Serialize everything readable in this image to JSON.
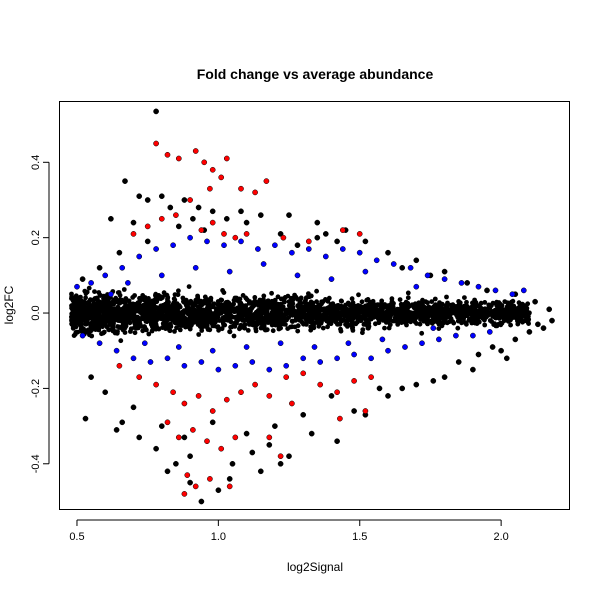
{
  "chart_data": {
    "type": "scatter",
    "title": "Fold change vs average abundance",
    "xlabel": "log2Signal",
    "ylabel": "log2FC",
    "xlim": [
      0.44,
      2.24
    ],
    "ylim": [
      -0.52,
      0.56
    ],
    "xticks": [
      0.5,
      1.0,
      1.5,
      2.0
    ],
    "xtick_labels": [
      "0.5",
      "1.0",
      "1.5",
      "2.0"
    ],
    "yticks": [
      -0.4,
      -0.2,
      0.0,
      0.2,
      0.4
    ],
    "ytick_labels": [
      "-0.4",
      "-0.2",
      "0.0",
      "0.2",
      "0.4"
    ],
    "grid": false,
    "legend": "none",
    "colors": {
      "background": "#000000",
      "moderate": "#0000ff",
      "significant": "#ff0000",
      "outline": "#000000"
    },
    "series": [
      {
        "color": "#000000",
        "points": [
          [
            0.78,
            0.535
          ],
          [
            0.67,
            0.35
          ],
          [
            0.72,
            0.31
          ],
          [
            0.75,
            0.3
          ],
          [
            0.8,
            0.31
          ],
          [
            0.83,
            0.28
          ],
          [
            0.88,
            0.3
          ],
          [
            0.93,
            0.28
          ],
          [
            0.98,
            0.27
          ],
          [
            1.03,
            0.25
          ],
          [
            1.1,
            0.24
          ],
          [
            1.15,
            0.26
          ],
          [
            0.62,
            0.25
          ],
          [
            0.7,
            0.24
          ],
          [
            0.86,
            0.23
          ],
          [
            0.95,
            0.22
          ],
          [
            0.53,
            -0.28
          ],
          [
            0.64,
            -0.31
          ],
          [
            0.72,
            -0.33
          ],
          [
            0.78,
            -0.36
          ],
          [
            0.85,
            -0.4
          ],
          [
            0.9,
            -0.45
          ],
          [
            0.94,
            -0.5
          ],
          [
            1.0,
            -0.47
          ],
          [
            1.05,
            -0.4
          ],
          [
            1.12,
            -0.37
          ],
          [
            1.18,
            -0.35
          ],
          [
            1.25,
            -0.38
          ],
          [
            1.33,
            -0.32
          ],
          [
            1.42,
            -0.34
          ],
          [
            1.52,
            -0.27
          ],
          [
            1.6,
            -0.22
          ],
          [
            1.7,
            -0.19
          ],
          [
            1.8,
            -0.17
          ],
          [
            1.85,
            -0.13
          ],
          [
            1.92,
            -0.11
          ],
          [
            2.0,
            -0.1
          ],
          [
            2.05,
            -0.07
          ],
          [
            2.1,
            -0.05
          ],
          [
            2.15,
            -0.04
          ],
          [
            2.18,
            -0.02
          ],
          [
            2.12,
            0.03
          ],
          [
            2.05,
            0.05
          ],
          [
            1.95,
            0.06
          ],
          [
            1.88,
            0.08
          ],
          [
            1.8,
            0.11
          ],
          [
            1.7,
            0.14
          ],
          [
            1.6,
            0.16
          ],
          [
            1.52,
            0.19
          ],
          [
            1.42,
            0.19
          ],
          [
            1.35,
            0.2
          ],
          [
            1.28,
            0.18
          ],
          [
            1.22,
            0.21
          ],
          [
            1.4,
            -0.22
          ],
          [
            1.3,
            -0.27
          ],
          [
            1.2,
            -0.3
          ],
          [
            1.1,
            -0.32
          ],
          [
            0.98,
            -0.29
          ],
          [
            0.88,
            -0.33
          ],
          [
            0.8,
            -0.3
          ],
          [
            0.7,
            -0.25
          ],
          [
            0.6,
            -0.21
          ],
          [
            0.55,
            -0.17
          ],
          [
            0.52,
            0.09
          ],
          [
            0.58,
            0.12
          ],
          [
            0.65,
            0.16
          ],
          [
            0.75,
            0.19
          ],
          [
            1.25,
            0.26
          ],
          [
            1.35,
            0.24
          ],
          [
            1.45,
            0.22
          ],
          [
            1.65,
            0.12
          ],
          [
            1.75,
            0.1
          ],
          [
            2.02,
            -0.12
          ],
          [
            1.97,
            -0.09
          ],
          [
            1.9,
            -0.15
          ],
          [
            1.76,
            -0.18
          ],
          [
            1.65,
            -0.2
          ],
          [
            0.9,
            -0.38
          ],
          [
            1.15,
            -0.42
          ],
          [
            1.22,
            -0.4
          ],
          [
            1.04,
            -0.44
          ],
          [
            0.82,
            -0.42
          ],
          [
            0.66,
            -0.29
          ],
          [
            1.48,
            -0.26
          ],
          [
            1.57,
            -0.2
          ],
          [
            2.17,
            0.01
          ],
          [
            2.13,
            -0.03
          ],
          [
            1.08,
            0.27
          ],
          [
            0.91,
            0.25
          ],
          [
            1.38,
            0.21
          ]
        ]
      },
      {
        "color": "#0000ff",
        "points": [
          [
            0.5,
            0.07
          ],
          [
            0.55,
            0.08
          ],
          [
            0.6,
            0.1
          ],
          [
            0.66,
            0.12
          ],
          [
            0.72,
            0.15
          ],
          [
            0.78,
            0.17
          ],
          [
            0.84,
            0.18
          ],
          [
            0.9,
            0.2
          ],
          [
            0.96,
            0.19
          ],
          [
            1.02,
            0.18
          ],
          [
            1.08,
            0.19
          ],
          [
            1.14,
            0.17
          ],
          [
            1.2,
            0.18
          ],
          [
            1.26,
            0.16
          ],
          [
            1.32,
            0.17
          ],
          [
            1.38,
            0.15
          ],
          [
            1.44,
            0.17
          ],
          [
            1.5,
            0.16
          ],
          [
            1.56,
            0.14
          ],
          [
            1.62,
            0.13
          ],
          [
            1.68,
            0.12
          ],
          [
            1.74,
            0.1
          ],
          [
            1.8,
            0.09
          ],
          [
            1.86,
            0.08
          ],
          [
            1.92,
            0.07
          ],
          [
            1.98,
            0.06
          ],
          [
            2.04,
            0.05
          ],
          [
            2.08,
            0.06
          ],
          [
            0.52,
            -0.06
          ],
          [
            0.58,
            -0.08
          ],
          [
            0.64,
            -0.1
          ],
          [
            0.7,
            -0.12
          ],
          [
            0.76,
            -0.13
          ],
          [
            0.82,
            -0.12
          ],
          [
            0.88,
            -0.14
          ],
          [
            0.94,
            -0.13
          ],
          [
            1.0,
            -0.15
          ],
          [
            1.06,
            -0.14
          ],
          [
            1.12,
            -0.13
          ],
          [
            1.18,
            -0.15
          ],
          [
            1.24,
            -0.14
          ],
          [
            1.3,
            -0.12
          ],
          [
            1.36,
            -0.13
          ],
          [
            1.42,
            -0.12
          ],
          [
            1.48,
            -0.11
          ],
          [
            1.54,
            -0.12
          ],
          [
            1.6,
            -0.1
          ],
          [
            1.66,
            -0.09
          ],
          [
            1.72,
            -0.08
          ],
          [
            1.78,
            -0.07
          ],
          [
            1.84,
            -0.06
          ],
          [
            1.9,
            -0.06
          ],
          [
            0.68,
            0.08
          ],
          [
            0.8,
            0.1
          ],
          [
            0.92,
            0.12
          ],
          [
            1.04,
            0.11
          ],
          [
            1.16,
            0.13
          ],
          [
            1.28,
            0.1
          ],
          [
            1.4,
            0.09
          ],
          [
            1.52,
            0.11
          ],
          [
            0.74,
            -0.08
          ],
          [
            0.86,
            -0.09
          ],
          [
            0.98,
            -0.1
          ],
          [
            1.1,
            -0.09
          ],
          [
            1.22,
            -0.08
          ],
          [
            1.34,
            -0.09
          ],
          [
            1.46,
            -0.08
          ],
          [
            1.58,
            -0.07
          ],
          [
            0.62,
            0.05
          ],
          [
            1.7,
            0.07
          ],
          [
            1.76,
            -0.04
          ],
          [
            1.96,
            -0.05
          ]
        ]
      },
      {
        "color": "#ff0000",
        "points": [
          [
            0.78,
            0.45
          ],
          [
            0.82,
            0.42
          ],
          [
            0.86,
            0.41
          ],
          [
            0.92,
            0.43
          ],
          [
            0.95,
            0.4
          ],
          [
            0.98,
            0.38
          ],
          [
            1.03,
            0.41
          ],
          [
            1.01,
            0.36
          ],
          [
            0.97,
            0.33
          ],
          [
            0.9,
            0.3
          ],
          [
            1.08,
            0.33
          ],
          [
            1.13,
            0.32
          ],
          [
            1.17,
            0.35
          ],
          [
            0.85,
            0.26
          ],
          [
            0.8,
            0.25
          ],
          [
            0.75,
            0.23
          ],
          [
            0.7,
            0.21
          ],
          [
            0.94,
            0.22
          ],
          [
            0.98,
            0.24
          ],
          [
            1.02,
            0.21
          ],
          [
            1.06,
            0.2
          ],
          [
            1.1,
            0.21
          ],
          [
            1.23,
            0.2
          ],
          [
            1.32,
            0.19
          ],
          [
            1.44,
            0.22
          ],
          [
            1.5,
            0.21
          ],
          [
            0.65,
            -0.14
          ],
          [
            0.72,
            -0.17
          ],
          [
            0.78,
            -0.19
          ],
          [
            0.84,
            -0.21
          ],
          [
            0.88,
            -0.24
          ],
          [
            0.93,
            -0.22
          ],
          [
            0.98,
            -0.26
          ],
          [
            1.03,
            -0.23
          ],
          [
            1.08,
            -0.21
          ],
          [
            1.13,
            -0.19
          ],
          [
            1.18,
            -0.22
          ],
          [
            1.24,
            -0.17
          ],
          [
            1.3,
            -0.16
          ],
          [
            1.36,
            -0.19
          ],
          [
            1.42,
            -0.21
          ],
          [
            1.48,
            -0.18
          ],
          [
            1.54,
            -0.17
          ],
          [
            0.82,
            -0.29
          ],
          [
            0.86,
            -0.33
          ],
          [
            0.91,
            -0.31
          ],
          [
            0.96,
            -0.34
          ],
          [
            1.01,
            -0.36
          ],
          [
            1.06,
            -0.33
          ],
          [
            0.89,
            -0.43
          ],
          [
            0.92,
            -0.46
          ],
          [
            0.97,
            -0.44
          ],
          [
            1.04,
            -0.46
          ],
          [
            0.88,
            -0.48
          ],
          [
            1.22,
            -0.38
          ],
          [
            1.43,
            -0.28
          ],
          [
            1.18,
            -0.33
          ],
          [
            1.52,
            -0.26
          ],
          [
            1.26,
            -0.24
          ]
        ]
      }
    ],
    "dense_band": {
      "color": "#000000",
      "x_range": [
        0.48,
        2.1
      ],
      "half_width_start": 0.055,
      "half_width_end": 0.03
    }
  }
}
